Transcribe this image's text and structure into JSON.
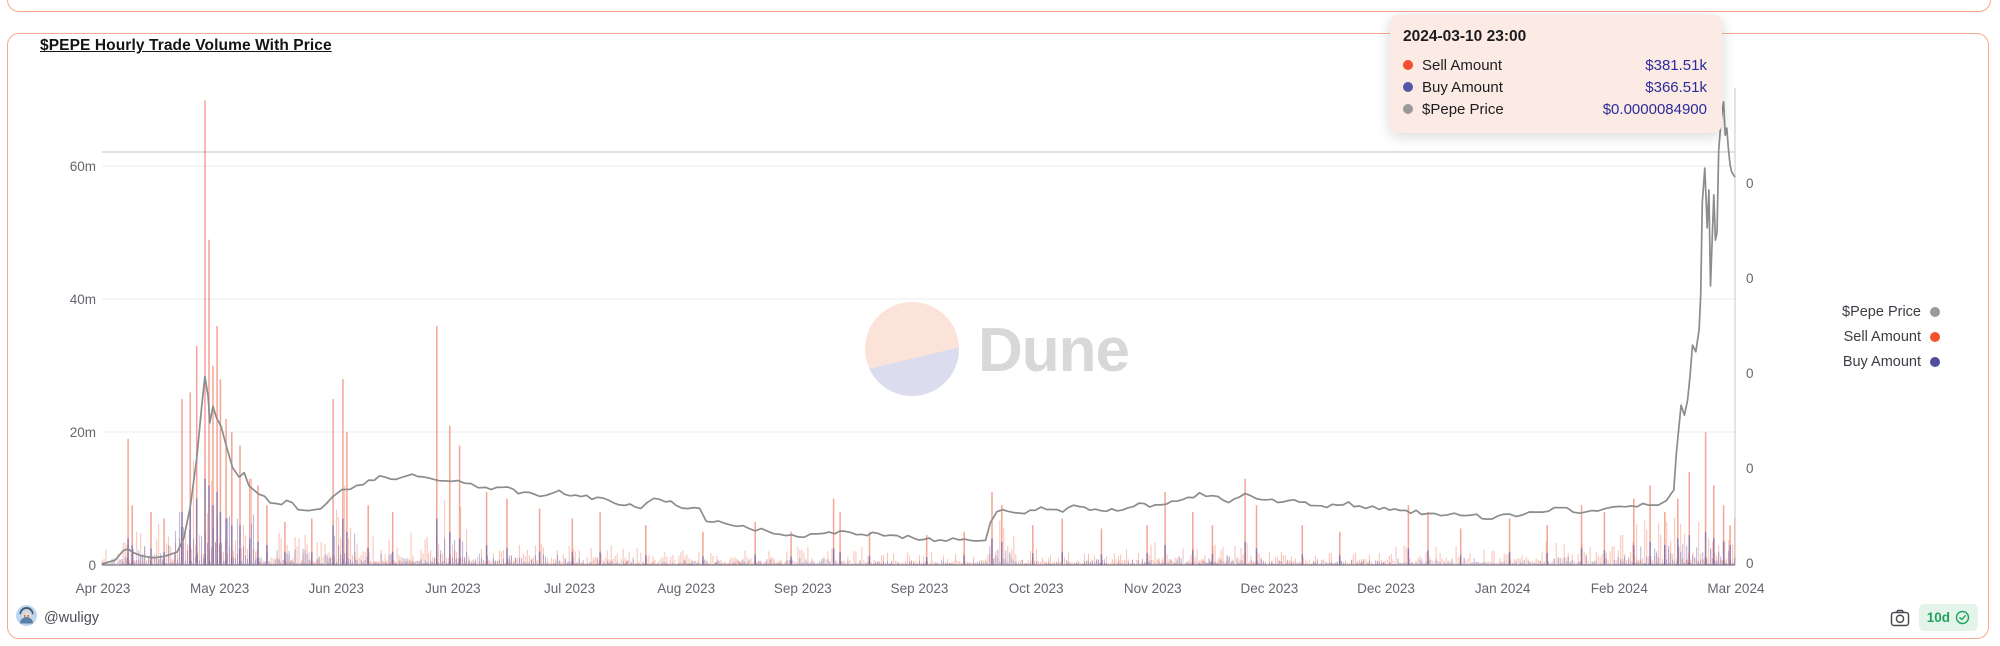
{
  "card": {
    "title": "$PEPE Hourly Trade Volume With Price",
    "watermark": "Dune",
    "footer": {
      "author": "@wuligy",
      "badge_label": "10d"
    }
  },
  "tooltip": {
    "date": "2024-03-10 23:00",
    "rows": [
      {
        "label": "Sell Amount",
        "value": "$381.51k",
        "color": "#F4502F"
      },
      {
        "label": "Buy Amount",
        "value": "$366.51k",
        "color": "#5456A6"
      },
      {
        "label": "$Pepe Price",
        "value": "$0.0000084900",
        "color": "#9A9A9A"
      }
    ]
  },
  "legend": [
    {
      "label": "$Pepe Price",
      "color": "#9A9A9A"
    },
    {
      "label": "Sell Amount",
      "color": "#F4512C"
    },
    {
      "label": "Buy Amount",
      "color": "#4D4F9D"
    }
  ],
  "chart_data": {
    "type": "combo",
    "title": "$PEPE Hourly Trade Volume With Price",
    "subtype": "hourly bars (sell/buy volume, left axis) + price line (right axis)",
    "x_labels": [
      "Apr 2023",
      "May 2023",
      "Jun 2023",
      "Jun 2023",
      "Jul 2023",
      "Aug 2023",
      "Sep 2023",
      "Sep 2023",
      "Oct 2023",
      "Nov 2023",
      "Dec 2023",
      "Dec 2023",
      "Jan 2024",
      "Feb 2024",
      "Mar 2024"
    ],
    "left_axis": {
      "tick_labels": [
        "0",
        "20m",
        "40m",
        "60m"
      ],
      "units": "USD volume",
      "max_m": 71
    },
    "right_axis": {
      "tick_labels": [
        "0",
        "0",
        "0",
        "0",
        "0"
      ],
      "units": "USD price (labels truncated to 0)"
    },
    "legend_position": "right",
    "grid": true,
    "series_meta": [
      {
        "name": "Sell Amount",
        "type": "bar",
        "color": "#EE5A3A"
      },
      {
        "name": "Buy Amount",
        "type": "bar",
        "color": "#5A5EAE"
      },
      {
        "name": "$Pepe Price",
        "type": "line",
        "color": "#8C8C8C"
      }
    ],
    "hovered_point": {
      "date": "2024-03-10 23:00",
      "sell": "$381.51k",
      "buy": "$366.51k",
      "price": "$0.0000084900"
    },
    "price_points": [
      [
        0,
        0.002
      ],
      [
        0.008,
        0.01
      ],
      [
        0.013,
        0.03
      ],
      [
        0.016,
        0.034
      ],
      [
        0.019,
        0.026
      ],
      [
        0.024,
        0.017
      ],
      [
        0.032,
        0.015
      ],
      [
        0.04,
        0.018
      ],
      [
        0.046,
        0.028
      ],
      [
        0.05,
        0.06
      ],
      [
        0.054,
        0.12
      ],
      [
        0.058,
        0.22
      ],
      [
        0.061,
        0.33
      ],
      [
        0.063,
        0.394
      ],
      [
        0.065,
        0.35
      ],
      [
        0.066,
        0.3
      ],
      [
        0.068,
        0.33
      ],
      [
        0.07,
        0.305
      ],
      [
        0.073,
        0.29
      ],
      [
        0.076,
        0.255
      ],
      [
        0.08,
        0.205
      ],
      [
        0.084,
        0.185
      ],
      [
        0.087,
        0.195
      ],
      [
        0.09,
        0.165
      ],
      [
        0.096,
        0.15
      ],
      [
        0.103,
        0.131
      ],
      [
        0.11,
        0.128
      ],
      [
        0.113,
        0.137
      ],
      [
        0.12,
        0.118
      ],
      [
        0.127,
        0.11
      ],
      [
        0.134,
        0.114
      ],
      [
        0.141,
        0.14
      ],
      [
        0.147,
        0.16
      ],
      [
        0.152,
        0.157
      ],
      [
        0.16,
        0.172
      ],
      [
        0.17,
        0.183
      ],
      [
        0.18,
        0.178
      ],
      [
        0.19,
        0.188
      ],
      [
        0.2,
        0.18
      ],
      [
        0.21,
        0.172
      ],
      [
        0.218,
        0.178
      ],
      [
        0.226,
        0.168
      ],
      [
        0.235,
        0.16
      ],
      [
        0.245,
        0.163
      ],
      [
        0.255,
        0.152
      ],
      [
        0.268,
        0.145
      ],
      [
        0.28,
        0.153
      ],
      [
        0.29,
        0.147
      ],
      [
        0.3,
        0.14
      ],
      [
        0.31,
        0.135
      ],
      [
        0.32,
        0.128
      ],
      [
        0.33,
        0.122
      ],
      [
        0.338,
        0.136
      ],
      [
        0.345,
        0.134
      ],
      [
        0.355,
        0.122
      ],
      [
        0.366,
        0.115
      ],
      [
        0.37,
        0.095
      ],
      [
        0.385,
        0.083
      ],
      [
        0.4,
        0.075
      ],
      [
        0.415,
        0.068
      ],
      [
        0.43,
        0.06
      ],
      [
        0.442,
        0.066
      ],
      [
        0.452,
        0.07
      ],
      [
        0.462,
        0.064
      ],
      [
        0.475,
        0.067
      ],
      [
        0.487,
        0.06
      ],
      [
        0.5,
        0.055
      ],
      [
        0.513,
        0.052
      ],
      [
        0.525,
        0.055
      ],
      [
        0.535,
        0.05
      ],
      [
        0.541,
        0.052
      ],
      [
        0.544,
        0.09
      ],
      [
        0.548,
        0.112
      ],
      [
        0.555,
        0.115
      ],
      [
        0.565,
        0.108
      ],
      [
        0.575,
        0.118
      ],
      [
        0.585,
        0.112
      ],
      [
        0.595,
        0.122
      ],
      [
        0.605,
        0.116
      ],
      [
        0.615,
        0.11
      ],
      [
        0.625,
        0.12
      ],
      [
        0.635,
        0.128
      ],
      [
        0.645,
        0.122
      ],
      [
        0.655,
        0.13
      ],
      [
        0.665,
        0.138
      ],
      [
        0.672,
        0.148
      ],
      [
        0.68,
        0.142
      ],
      [
        0.69,
        0.135
      ],
      [
        0.7,
        0.148
      ],
      [
        0.71,
        0.14
      ],
      [
        0.72,
        0.13
      ],
      [
        0.73,
        0.135
      ],
      [
        0.74,
        0.128
      ],
      [
        0.75,
        0.122
      ],
      [
        0.76,
        0.13
      ],
      [
        0.77,
        0.125
      ],
      [
        0.782,
        0.118
      ],
      [
        0.795,
        0.115
      ],
      [
        0.808,
        0.11
      ],
      [
        0.82,
        0.105
      ],
      [
        0.832,
        0.108
      ],
      [
        0.845,
        0.1
      ],
      [
        0.858,
        0.102
      ],
      [
        0.87,
        0.108
      ],
      [
        0.882,
        0.112
      ],
      [
        0.893,
        0.118
      ],
      [
        0.905,
        0.112
      ],
      [
        0.916,
        0.115
      ],
      [
        0.925,
        0.122
      ],
      [
        0.933,
        0.118
      ],
      [
        0.94,
        0.125
      ],
      [
        0.947,
        0.13
      ],
      [
        0.953,
        0.128
      ],
      [
        0.958,
        0.135
      ],
      [
        0.961,
        0.15
      ],
      [
        0.9625,
        0.157
      ],
      [
        0.964,
        0.23
      ],
      [
        0.9655,
        0.285
      ],
      [
        0.967,
        0.335
      ],
      [
        0.969,
        0.314
      ],
      [
        0.971,
        0.346
      ],
      [
        0.9725,
        0.398
      ],
      [
        0.974,
        0.461
      ],
      [
        0.976,
        0.447
      ],
      [
        0.978,
        0.493
      ],
      [
        0.979,
        0.566
      ],
      [
        0.98,
        0.76
      ],
      [
        0.9815,
        0.832
      ],
      [
        0.983,
        0.707
      ],
      [
        0.984,
        0.786
      ],
      [
        0.985,
        0.585
      ],
      [
        0.987,
        0.776
      ],
      [
        0.988,
        0.681
      ],
      [
        0.989,
        0.696
      ],
      [
        0.99,
        0.87
      ],
      [
        0.9915,
        0.933
      ],
      [
        0.993,
        0.971
      ],
      [
        0.994,
        0.901
      ],
      [
        0.995,
        0.916
      ],
      [
        0.996,
        0.87
      ],
      [
        0.997,
        0.839
      ],
      [
        0.998,
        0.824
      ],
      [
        1,
        0.813
      ]
    ],
    "bar_texture": [
      [
        0,
        1,
        0.9,
        0.4
      ],
      [
        0,
        0.013,
        2.5,
        1.2
      ],
      [
        0.013,
        0.02,
        7,
        3
      ],
      [
        0.02,
        0.045,
        7,
        3
      ],
      [
        0.045,
        0.095,
        16,
        8
      ],
      [
        0.095,
        0.14,
        5,
        2.5
      ],
      [
        0.14,
        0.155,
        12,
        5
      ],
      [
        0.155,
        0.2,
        5,
        2.2
      ],
      [
        0.2,
        0.225,
        10,
        4
      ],
      [
        0.225,
        0.28,
        4,
        1.8
      ],
      [
        0.28,
        0.33,
        3,
        1.2
      ],
      [
        0.33,
        0.42,
        2.2,
        0.9
      ],
      [
        0.42,
        0.47,
        2.8,
        1.1
      ],
      [
        0.47,
        0.54,
        2,
        0.8
      ],
      [
        0.54,
        0.56,
        7,
        3
      ],
      [
        0.56,
        0.64,
        2.5,
        1
      ],
      [
        0.64,
        0.71,
        3.5,
        1.4
      ],
      [
        0.71,
        0.79,
        2,
        0.8
      ],
      [
        0.79,
        0.855,
        3,
        1.2
      ],
      [
        0.855,
        0.93,
        3.5,
        1.4
      ],
      [
        0.93,
        1,
        7.5,
        3.2
      ]
    ],
    "bar_spikes": [
      [
        0.016,
        19,
        4
      ],
      [
        0.0185,
        9,
        3
      ],
      [
        0.03,
        8,
        2.5
      ],
      [
        0.038,
        7,
        2
      ],
      [
        0.049,
        25,
        8
      ],
      [
        0.054,
        26,
        9
      ],
      [
        0.058,
        33,
        10
      ],
      [
        0.0631,
        70,
        13
      ],
      [
        0.0655,
        49,
        12
      ],
      [
        0.068,
        30,
        9
      ],
      [
        0.0705,
        36,
        11
      ],
      [
        0.0725,
        28,
        8
      ],
      [
        0.076,
        22,
        7
      ],
      [
        0.0795,
        20,
        6
      ],
      [
        0.0845,
        18,
        6
      ],
      [
        0.0905,
        13,
        4
      ],
      [
        0.0955,
        12,
        3.5
      ],
      [
        0.101,
        9,
        3
      ],
      [
        0.112,
        6.5,
        2
      ],
      [
        0.1285,
        7,
        2
      ],
      [
        0.1415,
        25,
        6
      ],
      [
        0.1475,
        28,
        7
      ],
      [
        0.15,
        20,
        5
      ],
      [
        0.163,
        9,
        2.5
      ],
      [
        0.178,
        8,
        2
      ],
      [
        0.205,
        36,
        7
      ],
      [
        0.213,
        21,
        5
      ],
      [
        0.219,
        18,
        4
      ],
      [
        0.2355,
        11,
        3
      ],
      [
        0.248,
        10,
        2.5
      ],
      [
        0.268,
        8.5,
        2
      ],
      [
        0.288,
        7,
        2
      ],
      [
        0.305,
        8,
        2
      ],
      [
        0.333,
        6,
        1.5
      ],
      [
        0.368,
        5,
        1.3
      ],
      [
        0.4,
        6.5,
        1.6
      ],
      [
        0.422,
        5,
        1.3
      ],
      [
        0.448,
        10,
        2.5
      ],
      [
        0.452,
        8,
        2
      ],
      [
        0.47,
        5,
        1.4
      ],
      [
        0.505,
        4.5,
        1.2
      ],
      [
        0.528,
        5,
        1.4
      ],
      [
        0.545,
        11,
        4
      ],
      [
        0.551,
        9,
        3.5
      ],
      [
        0.57,
        6,
        1.8
      ],
      [
        0.588,
        7,
        2
      ],
      [
        0.612,
        5.5,
        1.6
      ],
      [
        0.64,
        6,
        1.8
      ],
      [
        0.651,
        11,
        3
      ],
      [
        0.668,
        8,
        2.2
      ],
      [
        0.68,
        6,
        1.7
      ],
      [
        0.7,
        13,
        3.5
      ],
      [
        0.707,
        9,
        2.5
      ],
      [
        0.735,
        6,
        1.6
      ],
      [
        0.758,
        5,
        1.4
      ],
      [
        0.8,
        9,
        2.5
      ],
      [
        0.812,
        8,
        2.2
      ],
      [
        0.832,
        5.5,
        1.5
      ],
      [
        0.862,
        7,
        2
      ],
      [
        0.885,
        6,
        1.8
      ],
      [
        0.906,
        9,
        2.5
      ],
      [
        0.92,
        8,
        2.2
      ],
      [
        0.938,
        10,
        3
      ],
      [
        0.948,
        12,
        3.5
      ],
      [
        0.957,
        8,
        3
      ],
      [
        0.965,
        10,
        4
      ],
      [
        0.972,
        14,
        4.5
      ],
      [
        0.982,
        20,
        5
      ],
      [
        0.987,
        12,
        4
      ],
      [
        0.993,
        9,
        3.5
      ],
      [
        0.997,
        6,
        3
      ]
    ]
  },
  "colors": {
    "card_border": "#F8A98C",
    "tooltip_bg": "#FBEBE4",
    "tooltip_value": "#2B2B9B",
    "grid": "#EBEBEB",
    "grid_dark": "#C2C2C2",
    "axis_text": "#64666d",
    "price_line": "#8C8C8C",
    "sell_bar": "#EE5A3A",
    "buy_bar": "#5A5EAE",
    "watermark_text": "#D8D8D8",
    "watermark_pink": "#FBE3DA",
    "watermark_lavender": "#DBDCED",
    "badge_green": "#1FA35D"
  }
}
